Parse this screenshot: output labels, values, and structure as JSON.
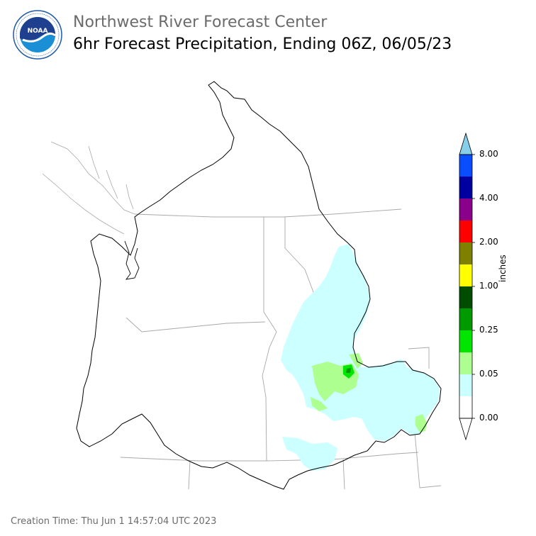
{
  "header": {
    "agency": "Northwest River Forecast Center",
    "product": "6hr Forecast Precipitation, Ending 06Z, 06/05/23"
  },
  "logo": {
    "name": "NOAA",
    "ring_text": "NATIONAL OCEANIC AND ATMOSPHERIC ADMINISTRATION · U.S. DEPARTMENT OF COMMERCE",
    "colors": {
      "sky": "#1f5aa6",
      "sea": "#1a8fd6",
      "ring": "#ffffff"
    }
  },
  "legend": {
    "unit": "inches",
    "tick_labels": [
      "0.00",
      "0.05",
      "0.25",
      "1.00",
      "2.00",
      "4.00",
      "8.00"
    ],
    "bins": [
      {
        "min": "0.00",
        "color": "#ffffff"
      },
      {
        "color": "#ccffff"
      },
      {
        "min": "0.05",
        "color": "#adff8f"
      },
      {
        "color": "#00e600"
      },
      {
        "min": "0.25",
        "color": "#009900"
      },
      {
        "color": "#004d00"
      },
      {
        "min": "1.00",
        "color": "#ffff00"
      },
      {
        "color": "#808000"
      },
      {
        "min": "2.00",
        "color": "#ff0000"
      },
      {
        "color": "#8a008a"
      },
      {
        "min": "4.00",
        "color": "#0000a0"
      },
      {
        "color": "#0a4dff"
      },
      {
        "min": "8.00",
        "color": "#87ceeb"
      }
    ]
  },
  "map": {
    "region": "Columbia River Basin and coastal drainages",
    "basin_outline_color": "#000000",
    "state_border_color": "#a0a0a0",
    "precip_areas": [
      {
        "bin": "0.00-0.05",
        "color": "#ccffff"
      },
      {
        "bin": "0.05-0.10",
        "color": "#adff8f"
      },
      {
        "bin": "0.10-0.25",
        "color": "#00e600"
      },
      {
        "bin": "0.25-0.50",
        "color": "#009900"
      }
    ]
  },
  "footer": {
    "creation_time": "Creation Time: Thu Jun 1 14:57:04 UTC 2023"
  }
}
